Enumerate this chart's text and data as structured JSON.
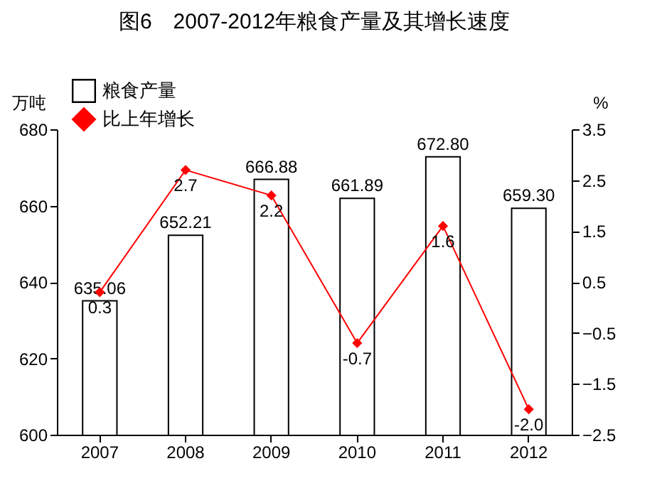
{
  "chart_data": {
    "type": "bar",
    "title": "图6　2007-2012年粮食产量及其增长速度",
    "ylabel": "万吨",
    "y2label": "%",
    "categories": [
      "2007",
      "2008",
      "2009",
      "2010",
      "2011",
      "2012"
    ],
    "series": [
      {
        "name": "粮食产量",
        "color": "#ffffff",
        "values": [
          635.06,
          652.21,
          666.88,
          661.89,
          672.8,
          659.3
        ],
        "value_labels": [
          "635.06",
          "652.21",
          "666.88",
          "661.89",
          "672.80",
          "659.30"
        ]
      },
      {
        "name": "比上年增长",
        "type": "line",
        "axis": "y2",
        "color": "#ff0000",
        "marker": "diamond",
        "values": [
          0.3,
          2.7,
          2.2,
          -0.7,
          1.6,
          -2.0
        ],
        "value_labels": [
          "0.3",
          "2.7",
          "2.2",
          "-0.7",
          "1.6",
          "-2.0"
        ]
      }
    ],
    "ylim": [
      600,
      680
    ],
    "yticks": [
      600,
      620,
      640,
      660,
      680
    ],
    "y2lim": [
      -2.5,
      3.5
    ],
    "y2ticks": [
      -2.5,
      -1.5,
      -0.5,
      0.5,
      1.5,
      2.5,
      3.5
    ],
    "grid": false,
    "legend": "top left"
  }
}
